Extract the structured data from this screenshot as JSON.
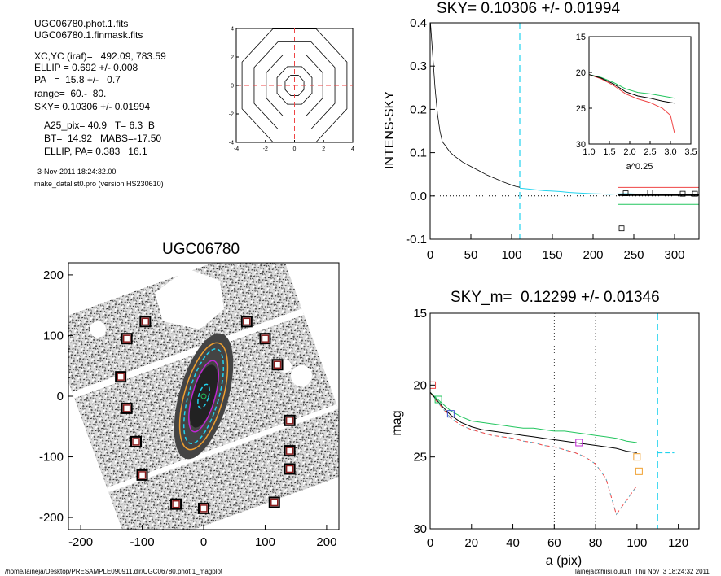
{
  "info": {
    "lines_a": [
      "UGC06780.phot.1.fits",
      "UGC06780.1.finmask.fits"
    ],
    "lines_b": [
      "XC,YC (iraf)=   492.09, 783.59",
      "ELLIP = 0.692 +/- 0.008",
      "PA   =  15.8 +/-   0.7",
      "range=  60.-  80.",
      "SKY= 0.10306 +/- 0.01994"
    ],
    "lines_c": [
      "A25_pix= 40.9   T= 6.3  B",
      "BT=  14.92   MABS=-17.50",
      "ELLIP, PA= 0.383   16.1"
    ],
    "date": "3-Nov-2011 18:24:32.00",
    "program": "make_datalist0.pro (version HS230610)"
  },
  "footer": {
    "left": "/home/laineja/Desktop/PRESAMPLE090911.dir/UGC06780.phot.1_magplot",
    "right": "laineja@hiisi.oulu.fi  Thu Nov  3 18:24:32 2011"
  },
  "colors": {
    "cyan": "#22d3ee",
    "red": "#ef4444",
    "green": "#22c55e",
    "orange": "#f0a030",
    "magenta": "#c026d3",
    "mask_red": "#8b1d1d"
  },
  "chart_data": [
    {
      "id": "center_contour",
      "type": "contour",
      "xlim": [
        -4,
        4
      ],
      "ylim": [
        -4,
        4
      ],
      "xticks": [
        "-4",
        "-2",
        "0",
        "2",
        "4"
      ],
      "yticks": [
        "-4",
        "-2",
        "0",
        "2",
        "4"
      ],
      "contours": [
        0.7,
        1.3,
        2.1,
        3.0,
        3.9
      ],
      "crosshair": [
        0,
        0
      ]
    },
    {
      "id": "image",
      "type": "image",
      "title": "UGC06780",
      "xlim": [
        -220,
        220
      ],
      "ylim": [
        -220,
        220
      ],
      "xticks": [
        "-200",
        "-100",
        "0",
        "100",
        "200"
      ],
      "yticks": [
        "200",
        "100",
        "0",
        "-100",
        "-200"
      ],
      "ellipse_pa_deg": 15.8,
      "ellipses": [
        {
          "a": 20,
          "ellip": 0.6,
          "color": "cyan"
        },
        {
          "a": 60,
          "ellip": 0.692,
          "color": "magenta"
        },
        {
          "a": 80,
          "ellip": 0.692,
          "color": "cyan"
        },
        {
          "a": 90,
          "ellip": 0.65,
          "color": "orange"
        }
      ],
      "sky_boxes": [
        [
          -95,
          123
        ],
        [
          -125,
          95
        ],
        [
          -135,
          32
        ],
        [
          -125,
          -20
        ],
        [
          -110,
          -75
        ],
        [
          -100,
          -130
        ],
        [
          -45,
          -178
        ],
        [
          0,
          -185
        ],
        [
          70,
          123
        ],
        [
          100,
          95
        ],
        [
          120,
          52
        ],
        [
          140,
          -40
        ],
        [
          140,
          -90
        ],
        [
          140,
          -120
        ],
        [
          115,
          -175
        ]
      ]
    },
    {
      "id": "sky",
      "type": "line",
      "title": "SKY= 0.10306 +/- 0.01994",
      "ylabel": "INTENS-SKY",
      "xlim": [
        0,
        330
      ],
      "ylim": [
        -0.1,
        0.4
      ],
      "xticks": [
        0,
        50,
        100,
        150,
        200,
        250,
        300
      ],
      "yticks": [
        "-0.1",
        "0.0",
        "0.1",
        "0.2",
        "0.3",
        "0.4"
      ],
      "x_main": [
        0,
        3,
        6,
        9,
        12,
        15,
        18,
        21,
        25,
        30,
        40,
        50,
        60,
        70,
        80,
        90,
        100,
        105,
        110
      ],
      "y_main": [
        0.41,
        0.33,
        0.25,
        0.19,
        0.15,
        0.125,
        0.118,
        0.11,
        0.1,
        0.092,
        0.078,
        0.068,
        0.058,
        0.048,
        0.04,
        0.032,
        0.025,
        0.022,
        0.02
      ],
      "x_sky": [
        110,
        120,
        130,
        140,
        150,
        160,
        170,
        180,
        190,
        200,
        220,
        240,
        260,
        280,
        300,
        330
      ],
      "y_sky": [
        0.018,
        0.016,
        0.014,
        0.012,
        0.011,
        0.01,
        0.008,
        0.007,
        0.006,
        0.005,
        0.004,
        0.005,
        0.004,
        0.003,
        0.003,
        0.002
      ],
      "sky_level": 0.0,
      "sky_lines": [
        {
          "y": 0.0197,
          "color": "red"
        },
        {
          "y": -0.0197,
          "color": "green"
        }
      ],
      "sky_start": 110,
      "boxes": [
        [
          235,
          -0.075
        ],
        [
          240,
          0.006
        ],
        [
          270,
          0.008
        ],
        [
          310,
          0.005
        ],
        [
          325,
          0.005
        ]
      ],
      "inset": {
        "xlabel": "a^0.25",
        "xlim": [
          1.0,
          3.5
        ],
        "ylim": [
          30,
          15
        ],
        "xticks": [
          "1.0",
          "1.5",
          "2.0",
          "2.5",
          "3.0",
          "3.5"
        ],
        "yticks": [
          "15",
          "20",
          "25",
          "30"
        ],
        "x": [
          1.0,
          1.3,
          1.6,
          1.9,
          2.2,
          2.5,
          2.8,
          3.0,
          3.1
        ],
        "y_black": [
          20.3,
          20.8,
          21.6,
          22.7,
          23.3,
          23.6,
          24.0,
          24.2,
          24.3
        ],
        "y_green": [
          20.3,
          20.7,
          21.4,
          22.3,
          22.8,
          23.0,
          23.3,
          23.5,
          23.6
        ],
        "y_red": [
          20.3,
          20.9,
          21.8,
          23.0,
          23.7,
          24.2,
          25.0,
          26.0,
          28.5
        ]
      }
    },
    {
      "id": "mag",
      "type": "line",
      "title": "SKY_m=  0.12299 +/- 0.01346",
      "ylabel": "mag",
      "xlabel": "a (pix)",
      "xlim": [
        0,
        130
      ],
      "ylim": [
        30,
        15
      ],
      "xticks": [
        0,
        20,
        40,
        60,
        80,
        100,
        120
      ],
      "yticks": [
        "15",
        "20",
        "25",
        "30"
      ],
      "x": [
        0,
        3,
        6,
        10,
        15,
        20,
        25,
        30,
        35,
        40,
        45,
        50,
        55,
        60,
        65,
        70,
        75,
        80,
        85,
        90,
        95,
        100
      ],
      "y_black": [
        20.5,
        21.0,
        21.5,
        22.1,
        22.6,
        22.9,
        23.1,
        23.2,
        23.3,
        23.4,
        23.5,
        23.6,
        23.7,
        23.8,
        23.9,
        24.0,
        24.1,
        24.2,
        24.3,
        24.4,
        24.6,
        24.7
      ],
      "y_green": [
        20.5,
        20.9,
        21.3,
        21.8,
        22.2,
        22.5,
        22.6,
        22.7,
        22.8,
        22.9,
        23.0,
        23.0,
        23.1,
        23.2,
        23.2,
        23.3,
        23.4,
        23.5,
        23.6,
        23.7,
        23.9,
        24.0
      ],
      "y_red": [
        20.5,
        21.1,
        21.6,
        22.3,
        22.8,
        23.1,
        23.3,
        23.5,
        23.6,
        23.7,
        23.9,
        24.0,
        24.2,
        24.3,
        24.5,
        24.7,
        25.0,
        25.5,
        26.5,
        29.0,
        28.0,
        27.0
      ],
      "vlines": [
        {
          "x": 60,
          "style": "dotted"
        },
        {
          "x": 80,
          "style": "dotted"
        },
        {
          "x": 110,
          "style": "dashed-cyan"
        }
      ],
      "sky_tick": [
        110,
        118,
        24.7
      ],
      "boxes": [
        {
          "x": 1,
          "y": 20.0,
          "color": "red"
        },
        {
          "x": 4,
          "y": 21.0,
          "color": "green"
        },
        {
          "x": 10,
          "y": 22.0,
          "color": "blue"
        },
        {
          "x": 72,
          "y": 24.0,
          "color": "magenta"
        },
        {
          "x": 100,
          "y": 25.0,
          "color": "orange"
        },
        {
          "x": 101,
          "y": 26.0,
          "color": "orange"
        }
      ]
    }
  ]
}
